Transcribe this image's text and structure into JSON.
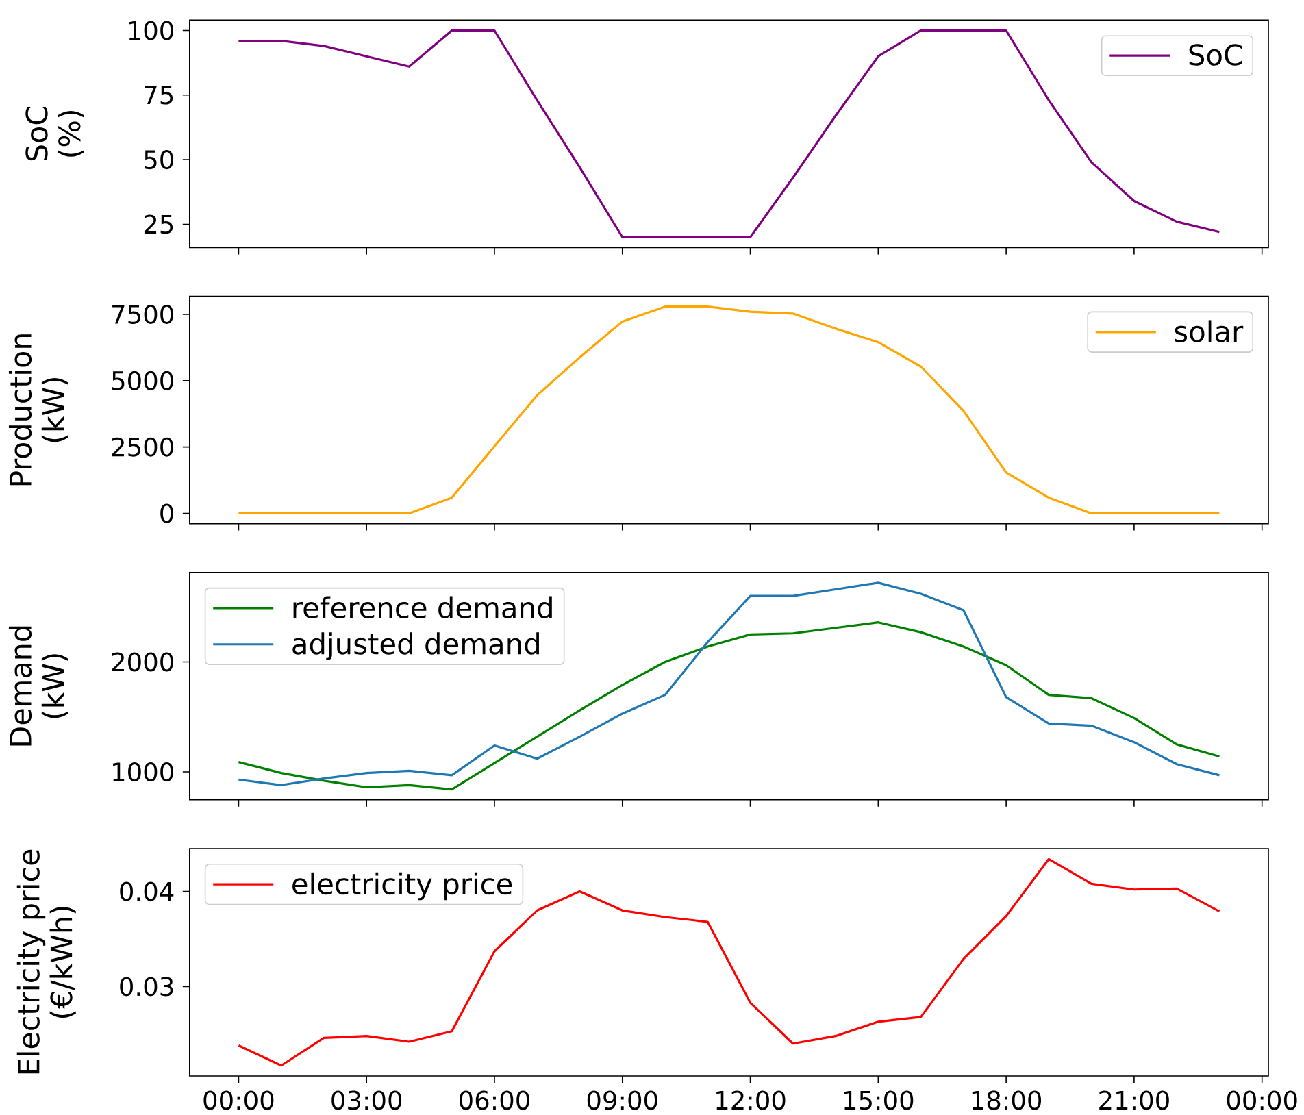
{
  "chart_data": [
    {
      "type": "line",
      "x": [
        0,
        1,
        2,
        3,
        4,
        5,
        6,
        7,
        8,
        9,
        10,
        11,
        12,
        13,
        14,
        15,
        16,
        17,
        18,
        19,
        20,
        21,
        22,
        23
      ],
      "xlim": [
        -1.15,
        24.15
      ],
      "xticks": [
        0,
        3,
        6,
        9,
        12,
        15,
        18,
        21,
        24
      ],
      "ylabel": "SoC\n(%)",
      "ylim": [
        16,
        104
      ],
      "yticks": [
        25,
        50,
        75,
        100
      ],
      "tick_labels": "y",
      "legend": "top right",
      "series": [
        {
          "name": "SoC",
          "color": "#800080",
          "values": [
            96,
            96,
            94,
            90,
            86,
            100,
            100,
            73,
            47,
            20,
            20,
            20,
            20,
            43,
            67,
            90,
            100,
            100,
            100,
            73,
            49,
            34,
            26,
            22
          ]
        }
      ]
    },
    {
      "type": "line",
      "x": [
        0,
        1,
        2,
        3,
        4,
        5,
        6,
        7,
        8,
        9,
        10,
        11,
        12,
        13,
        14,
        15,
        16,
        17,
        18,
        19,
        20,
        21,
        22,
        23
      ],
      "xlim": [
        -1.15,
        24.15
      ],
      "xticks": [
        0,
        3,
        6,
        9,
        12,
        15,
        18,
        21,
        24
      ],
      "ylabel": "Production\n(kW)",
      "ylim": [
        -390,
        8180
      ],
      "yticks": [
        0,
        2500,
        5000,
        7500
      ],
      "tick_labels": "y",
      "legend": "top right",
      "series": [
        {
          "name": "solar",
          "color": "#ffa500",
          "values": [
            0,
            0,
            0,
            0,
            0,
            590,
            2530,
            4450,
            5880,
            7230,
            7790,
            7790,
            7600,
            7530,
            6960,
            6450,
            5530,
            3860,
            1540,
            590,
            0,
            0,
            0,
            0
          ]
        }
      ]
    },
    {
      "type": "line",
      "x": [
        0,
        1,
        2,
        3,
        4,
        5,
        6,
        7,
        8,
        9,
        10,
        11,
        12,
        13,
        14,
        15,
        16,
        17,
        18,
        19,
        20,
        21,
        22,
        23
      ],
      "xlim": [
        -1.15,
        24.15
      ],
      "xticks": [
        0,
        3,
        6,
        9,
        12,
        15,
        18,
        21,
        24
      ],
      "ylabel": "Demand\n(kW)",
      "ylim": [
        746,
        2814
      ],
      "yticks": [
        1000,
        2000
      ],
      "tick_labels": "y",
      "legend": "top left",
      "series": [
        {
          "name": "reference demand",
          "color": "#008000",
          "values": [
            1090,
            990,
            920,
            860,
            880,
            840,
            1080,
            1320,
            1560,
            1790,
            2000,
            2140,
            2250,
            2260,
            2310,
            2360,
            2270,
            2140,
            1970,
            1700,
            1670,
            1490,
            1250,
            1140
          ]
        },
        {
          "name": "adjusted demand",
          "color": "#1f77b4",
          "values": [
            930,
            880,
            940,
            990,
            1010,
            970,
            1240,
            1120,
            1320,
            1530,
            1700,
            2180,
            2600,
            2600,
            2660,
            2720,
            2620,
            2470,
            1680,
            1440,
            1420,
            1270,
            1070,
            970
          ]
        }
      ]
    },
    {
      "type": "line",
      "x": [
        0,
        1,
        2,
        3,
        4,
        5,
        6,
        7,
        8,
        9,
        10,
        11,
        12,
        13,
        14,
        15,
        16,
        17,
        18,
        19,
        20,
        21,
        22,
        23
      ],
      "xlim": [
        -1.15,
        24.15
      ],
      "xticks": [
        {
          "value": 0,
          "label": "00:00"
        },
        {
          "value": 3,
          "label": "03:00"
        },
        {
          "value": 6,
          "label": "06:00"
        },
        {
          "value": 9,
          "label": "09:00"
        },
        {
          "value": 12,
          "label": "12:00"
        },
        {
          "value": 15,
          "label": "15:00"
        },
        {
          "value": 18,
          "label": "18:00"
        },
        {
          "value": 21,
          "label": "21:00"
        },
        {
          "value": 24,
          "label": "00:00"
        }
      ],
      "ylabel": "Electricity price\n(€/kWh)",
      "ylim": [
        0.0206,
        0.0445
      ],
      "yticks": [
        0.03,
        0.04
      ],
      "legend": "top left",
      "series": [
        {
          "name": "electricity price",
          "color": "#ff0000",
          "values": [
            0.0238,
            0.0217,
            0.0246,
            0.0248,
            0.0242,
            0.0253,
            0.0337,
            0.038,
            0.04,
            0.038,
            0.0373,
            0.0368,
            0.0283,
            0.024,
            0.0248,
            0.0263,
            0.0268,
            0.0329,
            0.0374,
            0.0434,
            0.0408,
            0.0402,
            0.0403,
            0.0379
          ]
        }
      ]
    }
  ]
}
